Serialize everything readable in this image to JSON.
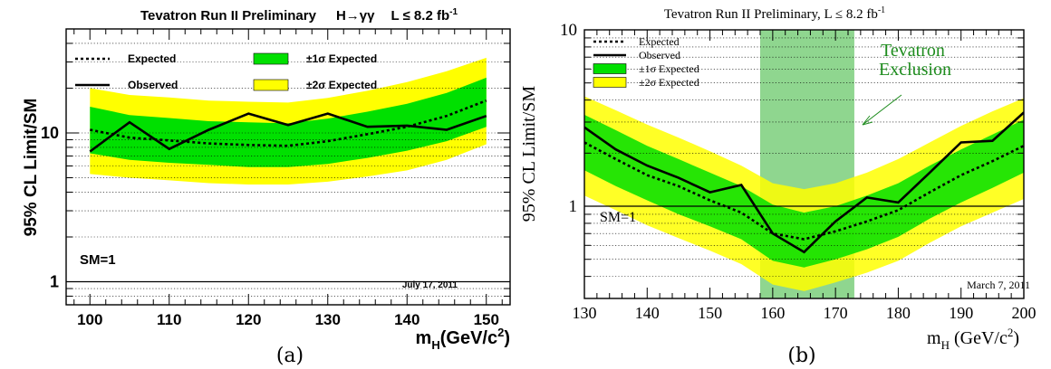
{
  "chart_data": [
    {
      "type": "line",
      "panel_label": "(a)",
      "title_parts": [
        "Tevatron Run II Preliminary",
        "H→γγ",
        "L ≤ 8.2 fb",
        "-1"
      ],
      "xlabel": [
        "m",
        "H",
        "(GeV/c",
        "2",
        ")"
      ],
      "ylabel": "95% CL Limit/SM",
      "xlim": [
        97,
        153
      ],
      "ylim": [
        0.7,
        50
      ],
      "yscale": "log",
      "xticks": [
        100,
        110,
        120,
        130,
        140,
        150
      ],
      "yticks": [
        1,
        10
      ],
      "ytick_labels": [
        "1",
        "10"
      ],
      "date_note": "July 17, 2011",
      "sm_label": "SM=1",
      "x": [
        100,
        105,
        110,
        115,
        120,
        125,
        130,
        135,
        140,
        145,
        150
      ],
      "expected": [
        10.5,
        9.3,
        8.9,
        8.5,
        8.3,
        8.2,
        8.8,
        9.8,
        11.0,
        13.0,
        16.5
      ],
      "observed": [
        7.5,
        11.8,
        7.8,
        10.5,
        13.5,
        11.3,
        13.5,
        11.0,
        11.2,
        10.5,
        13.0
      ],
      "band1_lo": [
        7.3,
        6.6,
        6.3,
        6.1,
        5.9,
        5.9,
        6.2,
        6.8,
        7.6,
        8.8,
        11.0
      ],
      "band1_hi": [
        15.0,
        13.2,
        12.6,
        12.0,
        11.8,
        11.6,
        12.5,
        13.9,
        15.7,
        18.6,
        23.5
      ],
      "band2_lo": [
        5.3,
        5.0,
        4.8,
        4.6,
        4.5,
        4.5,
        4.7,
        5.1,
        5.6,
        6.6,
        8.4
      ],
      "band2_hi": [
        20.0,
        18.0,
        17.3,
        16.5,
        16.2,
        16.0,
        17.2,
        19.2,
        22.0,
        26.0,
        32.0
      ],
      "legend": [
        {
          "kind": "dotted",
          "label": "Expected"
        },
        {
          "kind": "band1",
          "label": "±1σ Expected"
        },
        {
          "kind": "solid",
          "label": "Observed"
        },
        {
          "kind": "band2",
          "label": "±2σ Expected"
        }
      ]
    },
    {
      "type": "line",
      "panel_label": "(b)",
      "title_parts": [
        "Tevatron Run II Preliminary, L ≤ 8.2 fb",
        "-1"
      ],
      "xlabel": [
        "m",
        "H",
        " (GeV/c",
        "2",
        ")"
      ],
      "ylabel": "95% CL Limit/SM",
      "xlim": [
        130,
        200
      ],
      "ylim": [
        0.3,
        10
      ],
      "yscale": "log",
      "xticks": [
        130,
        140,
        150,
        160,
        170,
        180,
        190,
        200
      ],
      "yticks": [
        1,
        10
      ],
      "ytick_labels": [
        "1",
        "10"
      ],
      "date_note": "March 7, 2011",
      "sm_label": "SM=1",
      "exclusion_label": [
        "Tevatron",
        "Exclusion"
      ],
      "exclusion_range": [
        158,
        173
      ],
      "x": [
        130,
        135,
        140,
        145,
        150,
        155,
        160,
        165,
        170,
        175,
        180,
        185,
        190,
        195,
        200
      ],
      "expected": [
        2.3,
        1.85,
        1.5,
        1.3,
        1.08,
        0.92,
        0.7,
        0.65,
        0.72,
        0.82,
        0.95,
        1.2,
        1.5,
        1.8,
        2.2
      ],
      "observed": [
        2.8,
        2.1,
        1.7,
        1.45,
        1.2,
        1.32,
        0.7,
        0.55,
        0.82,
        1.12,
        1.05,
        1.55,
        2.3,
        2.35,
        3.4
      ],
      "band1_lo": [
        1.6,
        1.3,
        1.08,
        0.9,
        0.77,
        0.65,
        0.49,
        0.45,
        0.5,
        0.57,
        0.67,
        0.85,
        1.05,
        1.27,
        1.55
      ],
      "band1_hi": [
        3.3,
        2.7,
        2.2,
        1.85,
        1.55,
        1.3,
        1.02,
        0.92,
        1.0,
        1.15,
        1.35,
        1.7,
        2.1,
        2.55,
        3.1
      ],
      "band2_lo": [
        1.15,
        0.95,
        0.78,
        0.66,
        0.56,
        0.47,
        0.36,
        0.33,
        0.37,
        0.42,
        0.49,
        0.62,
        0.77,
        0.92,
        1.1
      ],
      "band2_hi": [
        4.2,
        3.5,
        2.9,
        2.45,
        2.05,
        1.7,
        1.35,
        1.25,
        1.35,
        1.55,
        1.85,
        2.3,
        2.85,
        3.45,
        4.1
      ],
      "legend": [
        {
          "kind": "dotted",
          "label": "Expected"
        },
        {
          "kind": "solid",
          "label": "Observed"
        },
        {
          "kind": "band1",
          "label": "±1σ Expected"
        },
        {
          "kind": "band2",
          "label": "±2σ Expected"
        }
      ]
    }
  ],
  "colors": {
    "band1": "#00e000",
    "band2": "#ffff00",
    "exclusion": "#8fd68f",
    "exclusion_text": "#1e8c1e",
    "line": "#000000"
  }
}
